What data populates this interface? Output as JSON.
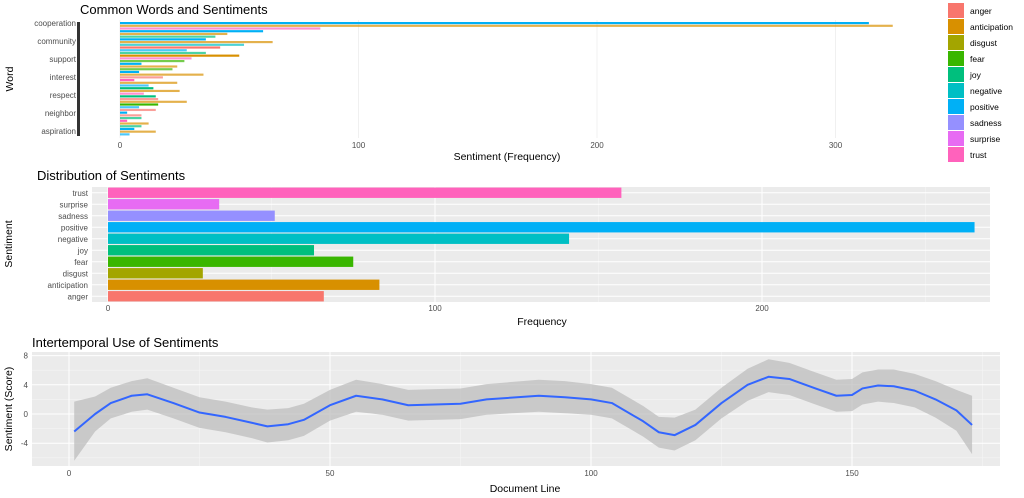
{
  "colors": {
    "anger": "#F8766D",
    "anticipation": "#D89000",
    "disgust": "#A3A500",
    "fear": "#39B600",
    "joy": "#00BF7D",
    "negative": "#00BFC4",
    "positive": "#00B0F6",
    "sadness": "#9590FF",
    "surprise": "#E76BF3",
    "trust": "#FF62BC",
    "line": "#3366FF",
    "band": "#bdbdbd",
    "panel": "#EBEBEB"
  },
  "chart_data": [
    {
      "type": "bar",
      "title": "Common Words and Sentiments",
      "xlabel": "Sentiment (Frequency)",
      "ylabel": "Word",
      "xlim": [
        0,
        330
      ],
      "xticks": [
        "0",
        "100",
        "200",
        "300"
      ],
      "legend": {
        "position": "right",
        "entries": [
          "anger",
          "anticipation",
          "disgust",
          "fear",
          "joy",
          "negative",
          "positive",
          "sadness",
          "surprise",
          "trust"
        ]
      },
      "words": [
        "cooperation",
        "community",
        "support",
        "interest",
        "respect",
        "neighbor",
        "aspiration"
      ],
      "bars": [
        {
          "sentiment": "positive",
          "value": 314
        },
        {
          "sentiment": "anticipation",
          "value": 324
        },
        {
          "sentiment": "trust",
          "value": 84
        },
        {
          "sentiment": "positive",
          "value": 60
        },
        {
          "sentiment": "anticipation",
          "value": 45
        },
        {
          "sentiment": "joy",
          "value": 40
        },
        {
          "sentiment": "positive",
          "value": 36
        },
        {
          "sentiment": "anticipation",
          "value": 64
        },
        {
          "sentiment": "negative",
          "value": 52
        },
        {
          "sentiment": "anger",
          "value": 42
        },
        {
          "sentiment": "positive",
          "value": 28
        },
        {
          "sentiment": "joy",
          "value": 36
        },
        {
          "sentiment": "anticipation",
          "value": 50
        },
        {
          "sentiment": "trust",
          "value": 30
        },
        {
          "sentiment": "fear",
          "value": 27
        },
        {
          "sentiment": "positive",
          "value": 9
        },
        {
          "sentiment": "anticipation",
          "value": 24
        },
        {
          "sentiment": "fear",
          "value": 22
        },
        {
          "sentiment": "positive",
          "value": 8
        },
        {
          "sentiment": "anticipation",
          "value": 35
        },
        {
          "sentiment": "anger",
          "value": 18
        },
        {
          "sentiment": "trust",
          "value": 6
        },
        {
          "sentiment": "anticipation",
          "value": 24
        },
        {
          "sentiment": "positive",
          "value": 12
        },
        {
          "sentiment": "joy",
          "value": 14
        },
        {
          "sentiment": "anticipation",
          "value": 25
        },
        {
          "sentiment": "trust",
          "value": 10
        },
        {
          "sentiment": "joy",
          "value": 15
        },
        {
          "sentiment": "anger",
          "value": 16
        },
        {
          "sentiment": "anticipation",
          "value": 28
        },
        {
          "sentiment": "fear",
          "value": 16
        },
        {
          "sentiment": "positive",
          "value": 8
        },
        {
          "sentiment": "anger",
          "value": 15
        },
        {
          "sentiment": "positive",
          "value": 3
        },
        {
          "sentiment": "anger",
          "value": 9
        },
        {
          "sentiment": "joy",
          "value": 9
        },
        {
          "sentiment": "trust",
          "value": 3
        },
        {
          "sentiment": "anticipation",
          "value": 12
        },
        {
          "sentiment": "joy",
          "value": 9
        },
        {
          "sentiment": "positive",
          "value": 6
        },
        {
          "sentiment": "anticipation",
          "value": 15
        },
        {
          "sentiment": "positive",
          "value": 4
        }
      ]
    },
    {
      "type": "bar",
      "title": "Distribution of Sentiments",
      "xlabel": "Frequency",
      "ylabel": "Sentiment",
      "xlim": [
        0,
        270
      ],
      "xticks": [
        0,
        100,
        200
      ],
      "categories": [
        "anger",
        "anticipation",
        "disgust",
        "fear",
        "joy",
        "negative",
        "positive",
        "sadness",
        "surprise",
        "trust"
      ],
      "values": [
        66,
        83,
        29,
        75,
        63,
        141,
        265,
        51,
        34,
        157
      ]
    },
    {
      "type": "line",
      "title": "Intertemporal Use of Sentiments",
      "xlabel": "Document Line",
      "ylabel": "Sentiment (Score)",
      "xlim": [
        0,
        175
      ],
      "ylim": [
        -7,
        8
      ],
      "xticks": [
        0,
        50,
        100,
        150
      ],
      "yticks": [
        -4,
        0,
        4,
        8
      ],
      "x": [
        1,
        5,
        8,
        12,
        15,
        20,
        25,
        30,
        35,
        38,
        42,
        45,
        50,
        55,
        60,
        65,
        70,
        75,
        80,
        90,
        95,
        100,
        104,
        110,
        113,
        116,
        120,
        125,
        130,
        134,
        138,
        143,
        147,
        150,
        152,
        155,
        158,
        162,
        166,
        170,
        173
      ],
      "y": [
        -2.4,
        0,
        1.5,
        2.5,
        2.7,
        1.5,
        0.2,
        -0.4,
        -1.2,
        -1.7,
        -1.4,
        -0.8,
        1.2,
        2.5,
        2.0,
        1.2,
        1.3,
        1.4,
        2.0,
        2.5,
        2.3,
        2.0,
        1.5,
        -1.0,
        -2.5,
        -2.9,
        -1.5,
        1.5,
        4.0,
        5.1,
        4.8,
        3.5,
        2.5,
        2.6,
        3.5,
        3.9,
        3.8,
        3.2,
        2.0,
        0.5,
        -1.5
      ],
      "lower": [
        -6.4,
        -2.4,
        -0.6,
        0.3,
        0.6,
        -0.6,
        -1.9,
        -2.5,
        -3.3,
        -3.9,
        -3.6,
        -3.0,
        -0.9,
        0.3,
        -0.1,
        -0.9,
        -0.8,
        -0.7,
        -0.1,
        0.3,
        0.1,
        -0.1,
        -0.6,
        -3.1,
        -4.6,
        -5.0,
        -3.6,
        -0.6,
        1.8,
        3.0,
        2.6,
        1.3,
        0.3,
        0.4,
        1.3,
        1.7,
        1.5,
        0.9,
        -0.5,
        -2.3,
        -5.5
      ],
      "upper": [
        1.7,
        2.4,
        3.6,
        4.5,
        4.9,
        3.6,
        2.3,
        1.7,
        0.9,
        0.6,
        0.8,
        1.4,
        3.3,
        4.7,
        4.1,
        3.3,
        3.4,
        3.5,
        4.1,
        4.7,
        4.5,
        4.1,
        3.6,
        1.1,
        -0.4,
        -0.5,
        0.6,
        3.6,
        6.2,
        7.5,
        7.0,
        5.7,
        4.7,
        4.8,
        5.7,
        6.1,
        6.1,
        5.5,
        4.5,
        3.3,
        2.5
      ],
      "grid": true
    }
  ]
}
